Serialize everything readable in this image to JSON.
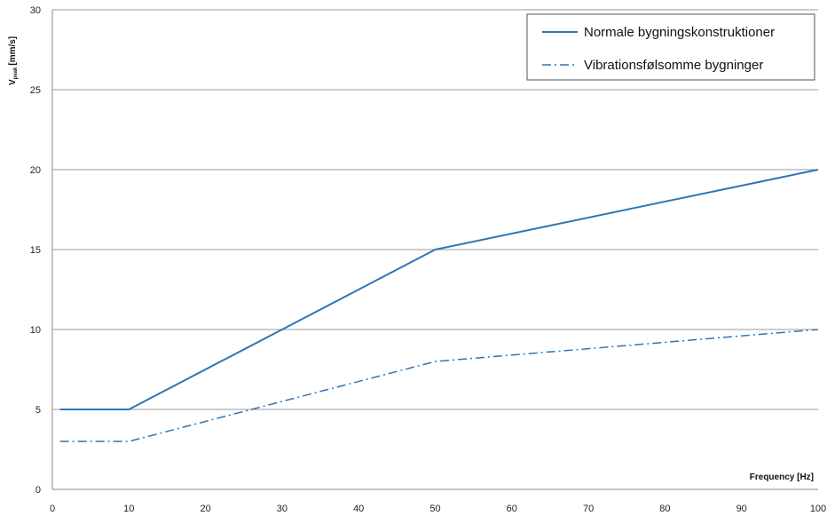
{
  "chart_data": {
    "type": "line",
    "title": "",
    "xlabel": "Frequency [Hz]",
    "ylabel": "V",
    "ylabel_subscript": "peak",
    "ylabel_unit": "[mm/s]",
    "xlim": [
      0,
      100
    ],
    "ylim": [
      0,
      30
    ],
    "xticks": [
      0,
      10,
      20,
      30,
      40,
      50,
      60,
      70,
      80,
      90,
      100
    ],
    "yticks": [
      0,
      5,
      10,
      15,
      20,
      25,
      30
    ],
    "grid": "horizontal",
    "legend_position": "top-right",
    "series": [
      {
        "name": "Normale bygningskonstruktioner",
        "style": "solid",
        "color": "#2e75b6",
        "x": [
          1,
          10,
          50,
          100
        ],
        "y": [
          5,
          5,
          15,
          20
        ]
      },
      {
        "name": "Vibrationsfølsomme bygninger",
        "style": "dashdot",
        "color": "#2e75b6",
        "x": [
          1,
          10,
          50,
          100
        ],
        "y": [
          3,
          3,
          8,
          10
        ]
      }
    ]
  }
}
